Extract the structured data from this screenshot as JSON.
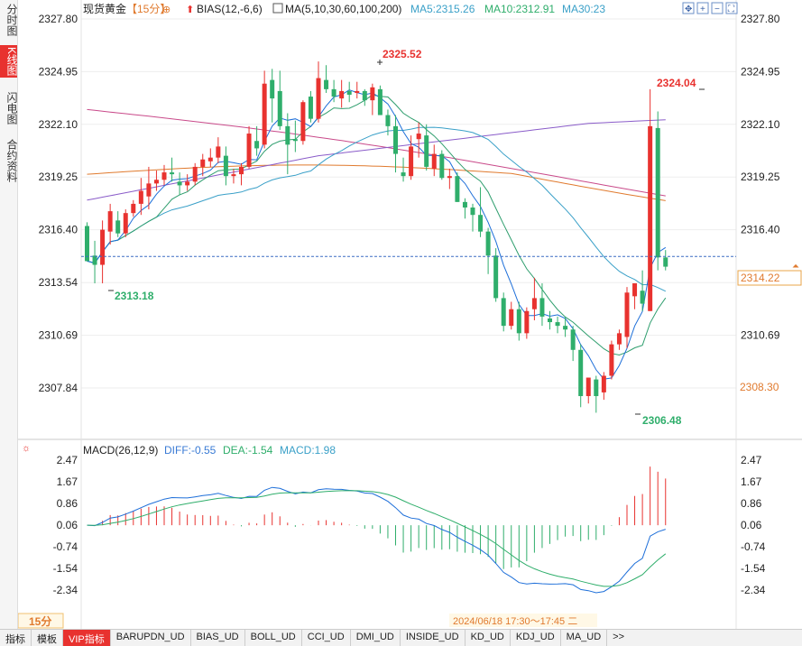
{
  "left_tabs": [
    {
      "label": "分时图",
      "active": false
    },
    {
      "label": "K线图",
      "active": true
    },
    {
      "label": "闪电图",
      "active": false
    },
    {
      "label": "合约资料",
      "active": false
    }
  ],
  "header": {
    "symbol": "现货黄金",
    "period": "【15分】",
    "bias_label": "BIAS(12,-6,6)",
    "ma_label": "MA(5,10,30,60,100,200)",
    "ma5": "MA5:2315.26",
    "ma10": "MA10:2312.91",
    "ma30": "MA30:23"
  },
  "price_axis": {
    "left_ticks": [
      "2327.80",
      "2324.95",
      "2322.10",
      "2319.25",
      "2316.40",
      "2313.54",
      "2310.69",
      "2307.84"
    ],
    "right_ticks": [
      "2327.80",
      "2324.95",
      "2322.10",
      "2319.25",
      "2316.40",
      "2310.69"
    ],
    "current_price": "2314.22",
    "low_marker": "2308.30"
  },
  "annotations": {
    "high": "2325.52",
    "low_left": "2313.18",
    "low": "2306.48",
    "recent_high": "2324.04"
  },
  "macd": {
    "label": "MACD(26,12,9)",
    "diff": "DIFF:-0.55",
    "dea": "DEA:-1.54",
    "macd": "MACD:1.98",
    "ticks": [
      "2.47",
      "1.67",
      "0.86",
      "0.06",
      "-0.74",
      "-1.54",
      "-2.34"
    ]
  },
  "footer": {
    "period_badge": "15分",
    "datetime": "2024/06/18 17:30～17:45 二"
  },
  "bottom_tabs": [
    "指标",
    "模板",
    "VIP指标",
    "BARUPDN_UD",
    "BIAS_UD",
    "BOLL_UD",
    "CCI_UD",
    "DMI_UD",
    "INSIDE_UD",
    "KD_UD",
    "KDJ_UD",
    "MA_UD",
    ">>"
  ],
  "colors": {
    "up": "#e8322f",
    "down": "#2fae6b",
    "ma5": "#1e6fd9",
    "ma10": "#2f9e6e",
    "ma30": "#3aa0c8",
    "ma60": "#8a5cc9",
    "ma100": "#e07a2e",
    "ma200": "#c94a8a",
    "diff": "#1e6fd9",
    "dea": "#2fae6b"
  },
  "chart_data": {
    "type": "candlestick",
    "ylim": [
      2306.0,
      2328.4
    ],
    "candles": [
      [
        2316.6,
        2316.8,
        2314.7,
        2314.7
      ],
      [
        2315.0,
        2315.8,
        2313.5,
        2314.5
      ],
      [
        2314.5,
        2316.9,
        2313.5,
        2316.4
      ],
      [
        2316.3,
        2317.8,
        2315.6,
        2317.4
      ],
      [
        2316.9,
        2317.4,
        2316.0,
        2316.2
      ],
      [
        2316.2,
        2317.5,
        2316.0,
        2317.3
      ],
      [
        2317.3,
        2318.0,
        2317.1,
        2317.8
      ],
      [
        2317.8,
        2319.2,
        2317.2,
        2318.5
      ],
      [
        2318.2,
        2319.8,
        2317.5,
        2318.9
      ],
      [
        2318.9,
        2319.6,
        2318.5,
        2319.1
      ],
      [
        2319.1,
        2319.9,
        2318.8,
        2319.5
      ],
      [
        2319.5,
        2320.3,
        2319.0,
        2319.4
      ],
      [
        2319.0,
        2319.5,
        2318.3,
        2318.8
      ],
      [
        2318.8,
        2319.4,
        2318.5,
        2319.0
      ],
      [
        2319.0,
        2320.0,
        2318.8,
        2319.8
      ],
      [
        2319.8,
        2320.5,
        2319.3,
        2320.2
      ],
      [
        2320.1,
        2320.8,
        2319.8,
        2320.3
      ],
      [
        2320.3,
        2321.4,
        2320.0,
        2320.9
      ],
      [
        2320.4,
        2320.9,
        2318.8,
        2319.3
      ],
      [
        2319.3,
        2319.7,
        2318.9,
        2319.4
      ],
      [
        2319.4,
        2320.0,
        2318.8,
        2319.8
      ],
      [
        2319.8,
        2322.0,
        2319.7,
        2321.6
      ],
      [
        2321.2,
        2322.0,
        2320.4,
        2320.8
      ],
      [
        2321.0,
        2325.0,
        2320.8,
        2324.3
      ],
      [
        2324.5,
        2325.1,
        2322.2,
        2323.5
      ],
      [
        2323.9,
        2325.0,
        2321.8,
        2322.0
      ],
      [
        2322.0,
        2322.7,
        2319.4,
        2321.0
      ],
      [
        2321.3,
        2322.3,
        2320.6,
        2321.2
      ],
      [
        2321.2,
        2323.4,
        2321.0,
        2323.3
      ],
      [
        2323.6,
        2323.9,
        2322.2,
        2322.4
      ],
      [
        2322.4,
        2325.5,
        2322.2,
        2324.6
      ],
      [
        2324.5,
        2325.3,
        2323.8,
        2324.0
      ],
      [
        2324.0,
        2324.5,
        2323.3,
        2323.6
      ],
      [
        2323.5,
        2324.5,
        2323.0,
        2323.9
      ],
      [
        2323.9,
        2324.4,
        2323.3,
        2323.7
      ],
      [
        2323.8,
        2324.4,
        2323.5,
        2323.9
      ],
      [
        2323.9,
        2324.0,
        2323.1,
        2323.4
      ],
      [
        2323.4,
        2324.3,
        2322.6,
        2324.1
      ],
      [
        2324.0,
        2324.2,
        2322.6,
        2322.6
      ],
      [
        2322.6,
        2322.9,
        2321.5,
        2322.0
      ],
      [
        2322.0,
        2322.6,
        2319.5,
        2320.5
      ],
      [
        2319.5,
        2320.3,
        2319.0,
        2319.3
      ],
      [
        2319.3,
        2321.5,
        2319.1,
        2320.9
      ],
      [
        2321.3,
        2322.2,
        2320.3,
        2321.6
      ],
      [
        2321.5,
        2322.1,
        2319.6,
        2319.8
      ],
      [
        2319.7,
        2321.0,
        2319.3,
        2320.5
      ],
      [
        2320.5,
        2320.7,
        2319.1,
        2319.2
      ],
      [
        2319.2,
        2319.7,
        2318.6,
        2319.3
      ],
      [
        2319.3,
        2319.5,
        2317.9,
        2317.9
      ],
      [
        2317.9,
        2318.1,
        2317.0,
        2317.6
      ],
      [
        2317.6,
        2317.8,
        2316.3,
        2317.2
      ],
      [
        2317.2,
        2318.7,
        2316.0,
        2316.3
      ],
      [
        2316.3,
        2316.5,
        2314.0,
        2315.0
      ],
      [
        2315.0,
        2315.4,
        2312.5,
        2312.7
      ],
      [
        2312.7,
        2313.0,
        2310.9,
        2311.2
      ],
      [
        2311.2,
        2312.5,
        2311.0,
        2312.1
      ],
      [
        2312.1,
        2312.5,
        2310.4,
        2310.8
      ],
      [
        2310.8,
        2312.2,
        2310.5,
        2312.0
      ],
      [
        2312.1,
        2313.8,
        2311.5,
        2312.7
      ],
      [
        2312.7,
        2313.5,
        2311.2,
        2311.7
      ],
      [
        2311.6,
        2312.0,
        2311.0,
        2311.4
      ],
      [
        2311.4,
        2311.7,
        2310.8,
        2311.2
      ],
      [
        2311.2,
        2311.7,
        2310.6,
        2311.0
      ],
      [
        2311.0,
        2311.2,
        2309.3,
        2309.9
      ],
      [
        2309.9,
        2310.2,
        2306.8,
        2307.4
      ],
      [
        2307.4,
        2308.4,
        2307.0,
        2308.4
      ],
      [
        2308.3,
        2308.5,
        2306.5,
        2307.4
      ],
      [
        2307.6,
        2308.7,
        2307.2,
        2308.5
      ],
      [
        2308.5,
        2310.4,
        2308.3,
        2310.2
      ],
      [
        2310.2,
        2311.0,
        2309.9,
        2310.8
      ],
      [
        2310.6,
        2313.3,
        2310.0,
        2313.0
      ],
      [
        2312.8,
        2313.5,
        2312.1,
        2313.5
      ],
      [
        2313.1,
        2314.2,
        2312.0,
        2312.4
      ],
      [
        2312.0,
        2324.0,
        2312.0,
        2322.0
      ],
      [
        2321.9,
        2322.8,
        2314.2,
        2314.9
      ],
      [
        2314.9,
        2315.3,
        2314.2,
        2314.4
      ]
    ],
    "macd_ylim": [
      -3.0,
      2.9
    ]
  }
}
